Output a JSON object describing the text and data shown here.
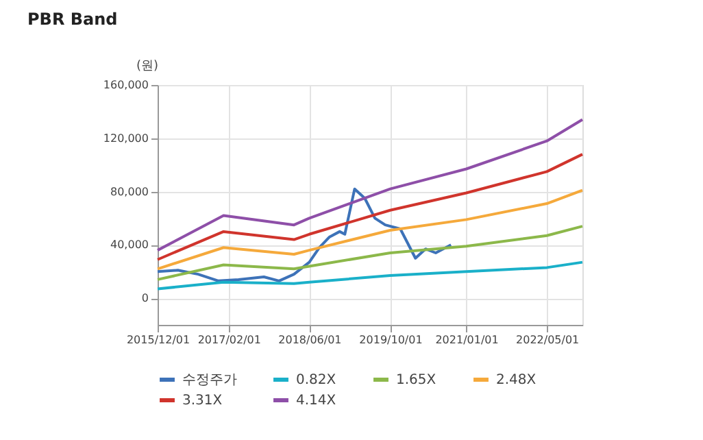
{
  "chart_data": {
    "type": "line",
    "title": "PBR Band",
    "ylabel": "(원)",
    "xlim": [
      "2015-12-01",
      "2022-12-01"
    ],
    "xticks": [
      {
        "value": "2015-12-01",
        "label": "2015/12/01"
      },
      {
        "value": "2017-02-01",
        "label": "2017/02/01"
      },
      {
        "value": "2018-06-01",
        "label": "2018/06/01"
      },
      {
        "value": "2019-10-01",
        "label": "2019/10/01"
      },
      {
        "value": "2021-01-01",
        "label": "2021/01/01"
      },
      {
        "value": "2022-05-01",
        "label": "2022/05/01"
      }
    ],
    "ylim": [
      -20000,
      160000
    ],
    "yticks": [
      0,
      {
        "value": 40000,
        "label": "40,000"
      },
      {
        "value": 80000,
        "label": "80,000"
      },
      {
        "value": 120000,
        "label": "120,000"
      },
      {
        "value": 160000,
        "label": "160,000"
      }
    ],
    "grid": true,
    "legend": "bottom",
    "series": [
      {
        "name": "수정주가",
        "color": "#3d72b8",
        "x": [
          "2015-12-01",
          "2016-04-01",
          "2016-08-01",
          "2016-12-01",
          "2017-04-01",
          "2017-09-01",
          "2017-12-01",
          "2018-03-01",
          "2018-06-01",
          "2018-08-01",
          "2018-10-01",
          "2018-12-01",
          "2019-01-01",
          "2019-03-01",
          "2019-05-01",
          "2019-07-01",
          "2019-09-01",
          "2019-12-01",
          "2020-03-01",
          "2020-05-01",
          "2020-07-01",
          "2020-10-01"
        ],
        "values": [
          20000,
          21000,
          18000,
          13000,
          14000,
          16000,
          13000,
          18000,
          27000,
          38000,
          46000,
          50000,
          48000,
          82000,
          75000,
          60000,
          55000,
          52000,
          30000,
          37000,
          34000,
          40000
        ]
      },
      {
        "name": "0.82X",
        "color": "#1ab0c9",
        "x": [
          "2015-12-01",
          "2017-01-01",
          "2018-03-01",
          "2018-06-01",
          "2019-10-01",
          "2021-01-01",
          "2022-05-01",
          "2022-12-01"
        ],
        "values": [
          7000,
          12000,
          11000,
          12000,
          17000,
          20000,
          23000,
          27000
        ]
      },
      {
        "name": "1.65X",
        "color": "#8cb84a",
        "x": [
          "2015-12-01",
          "2017-01-01",
          "2018-03-01",
          "2018-06-01",
          "2019-10-01",
          "2021-01-01",
          "2022-05-01",
          "2022-12-01"
        ],
        "values": [
          14000,
          25000,
          22000,
          24000,
          34000,
          39000,
          47000,
          54000
        ]
      },
      {
        "name": "2.48X",
        "color": "#f5a93b",
        "x": [
          "2015-12-01",
          "2017-01-01",
          "2018-03-01",
          "2018-06-01",
          "2019-10-01",
          "2021-01-01",
          "2022-05-01",
          "2022-12-01"
        ],
        "values": [
          22000,
          38000,
          33000,
          36000,
          51000,
          59000,
          71000,
          81000
        ]
      },
      {
        "name": "3.31X",
        "color": "#d0342c",
        "x": [
          "2015-12-01",
          "2017-01-01",
          "2018-03-01",
          "2018-06-01",
          "2019-10-01",
          "2021-01-01",
          "2022-05-01",
          "2022-12-01"
        ],
        "values": [
          29000,
          50000,
          44000,
          48000,
          66000,
          79000,
          95000,
          108000
        ]
      },
      {
        "name": "4.14X",
        "color": "#8e4fa8",
        "x": [
          "2015-12-01",
          "2017-01-01",
          "2018-03-01",
          "2018-06-01",
          "2019-10-01",
          "2021-01-01",
          "2022-05-01",
          "2022-12-01"
        ],
        "values": [
          36000,
          62000,
          55000,
          60000,
          82000,
          97000,
          118000,
          134000
        ]
      }
    ]
  }
}
